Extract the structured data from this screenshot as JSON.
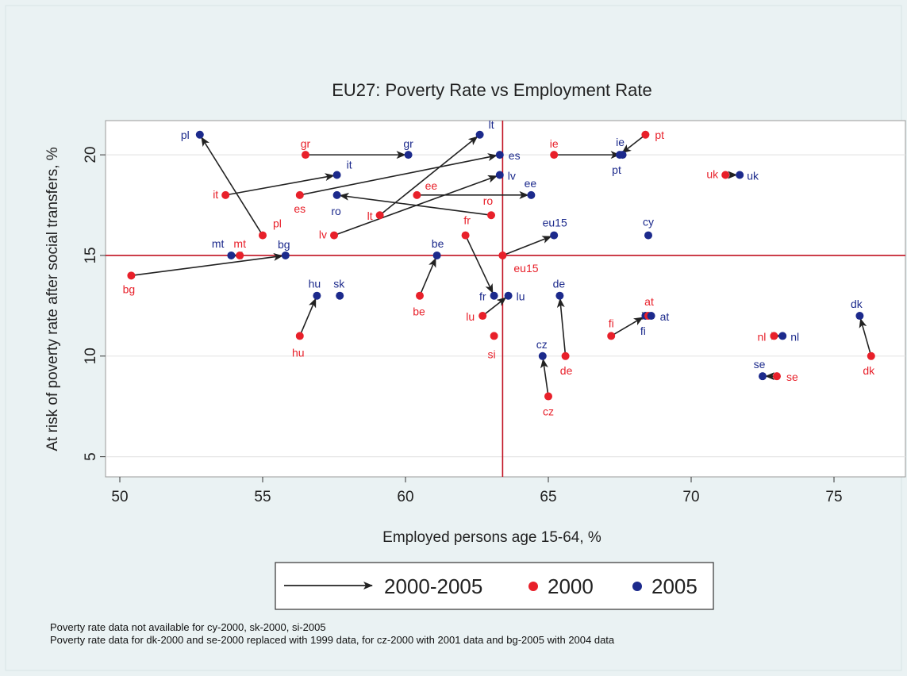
{
  "graph_id": "graph_1.1_2000-2005",
  "notes": [
    "Poverty rate data not available for cy-2000, sk-2000, si-2005",
    "Poverty rate data for dk-2000 and se-2000 replaced with 1999 data, for cz-2000 with 2001 data and bg-2005 with 2004 data"
  ],
  "chart_data": {
    "type": "scatter",
    "title": "EU27: Poverty Rate vs Employment Rate",
    "xlabel": "Employed persons age 15-64, %",
    "ylabel": "At risk of poverty rate after social transfers, %",
    "xlim": [
      49.5,
      77.5
    ],
    "ylim": [
      4,
      21.7
    ],
    "xticks": [
      50,
      55,
      60,
      65,
      70,
      75
    ],
    "yticks": [
      5,
      10,
      15,
      20
    ],
    "grid": "horizontal",
    "reference_lines": {
      "x": 63.4,
      "y": 15
    },
    "legend": {
      "placement": "bottom",
      "entries": [
        {
          "label": "2000-2005",
          "kind": "arrow"
        },
        {
          "label": "2000",
          "kind": "point",
          "color": "#e8202a"
        },
        {
          "label": "2005",
          "kind": "point",
          "color": "#1c2a8c"
        }
      ]
    },
    "colors": {
      "y2000": "#e8202a",
      "y2005": "#1c2a8c",
      "arrow": "#222222",
      "reference": "#c01020",
      "grid": "#e6e6e6"
    },
    "countries": [
      {
        "code": "pl",
        "p2000": [
          55.0,
          16.0
        ],
        "p2005": [
          52.8,
          21.0
        ]
      },
      {
        "code": "gr",
        "p2000": [
          56.5,
          20.0
        ],
        "p2005": [
          60.1,
          20.0
        ]
      },
      {
        "code": "it",
        "p2000": [
          53.7,
          18.0
        ],
        "p2005": [
          57.6,
          19.0
        ]
      },
      {
        "code": "es",
        "p2000": [
          56.3,
          18.0
        ],
        "p2005": [
          63.3,
          20.0
        ]
      },
      {
        "code": "ro",
        "p2000": [
          63.0,
          17.0
        ],
        "p2005": [
          57.6,
          18.0
        ]
      },
      {
        "code": "lt",
        "p2000": [
          59.1,
          17.0
        ],
        "p2005": [
          62.6,
          21.0
        ]
      },
      {
        "code": "lv",
        "p2000": [
          57.5,
          16.0
        ],
        "p2005": [
          63.3,
          19.0
        ]
      },
      {
        "code": "ee",
        "p2000": [
          60.4,
          18.0
        ],
        "p2005": [
          64.4,
          18.0
        ]
      },
      {
        "code": "ie",
        "p2000": [
          65.2,
          20.0
        ],
        "p2005": [
          67.6,
          20.0
        ]
      },
      {
        "code": "pt",
        "p2000": [
          68.4,
          21.0
        ],
        "p2005": [
          67.5,
          20.0
        ]
      },
      {
        "code": "uk",
        "p2000": [
          71.2,
          19.0
        ],
        "p2005": [
          71.7,
          19.0
        ]
      },
      {
        "code": "mt",
        "p2000": [
          54.2,
          15.0
        ],
        "p2005": [
          53.9,
          15.0
        ]
      },
      {
        "code": "bg",
        "p2000": [
          50.4,
          14.0
        ],
        "p2005": [
          55.8,
          15.0
        ]
      },
      {
        "code": "be",
        "p2000": [
          60.5,
          13.0
        ],
        "p2005": [
          61.1,
          15.0
        ]
      },
      {
        "code": "fr",
        "p2000": [
          62.1,
          16.0
        ],
        "p2005": [
          63.1,
          13.0
        ]
      },
      {
        "code": "eu15",
        "p2000": [
          63.4,
          15.0
        ],
        "p2005": [
          65.2,
          16.0
        ]
      },
      {
        "code": "hu",
        "p2000": [
          56.3,
          11.0
        ],
        "p2005": [
          56.9,
          13.0
        ]
      },
      {
        "code": "lu",
        "p2000": [
          62.7,
          12.0
        ],
        "p2005": [
          63.6,
          13.0
        ]
      },
      {
        "code": "de",
        "p2000": [
          65.6,
          10.0
        ],
        "p2005": [
          65.4,
          13.0
        ]
      },
      {
        "code": "cz",
        "p2000": [
          65.0,
          8.0
        ],
        "p2005": [
          64.8,
          10.0
        ]
      },
      {
        "code": "fi",
        "p2000": [
          67.2,
          11.0
        ],
        "p2005": [
          68.4,
          12.0
        ]
      },
      {
        "code": "at",
        "p2000": [
          68.5,
          12.0
        ],
        "p2005": [
          68.6,
          12.0
        ]
      },
      {
        "code": "nl",
        "p2000": [
          72.9,
          11.0
        ],
        "p2005": [
          73.2,
          11.0
        ]
      },
      {
        "code": "se",
        "p2000": [
          73.0,
          9.0
        ],
        "p2005": [
          72.5,
          9.0
        ]
      },
      {
        "code": "dk",
        "p2000": [
          76.3,
          10.0
        ],
        "p2005": [
          75.9,
          12.0
        ]
      },
      {
        "code": "cy",
        "p2000": null,
        "p2005": [
          68.5,
          16.0
        ]
      },
      {
        "code": "sk",
        "p2000": null,
        "p2005": [
          57.7,
          13.0
        ]
      },
      {
        "code": "si",
        "p2000": [
          63.1,
          11.0
        ],
        "p2005": null
      }
    ]
  }
}
